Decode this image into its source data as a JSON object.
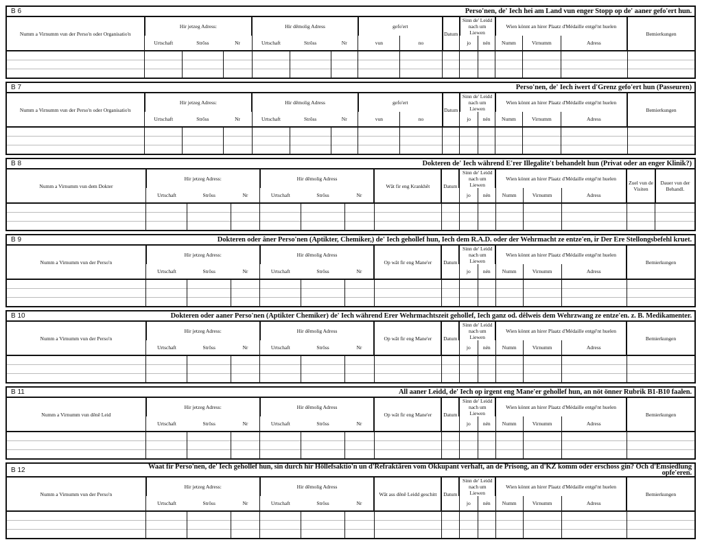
{
  "sections": [
    {
      "id": "B 6",
      "title": "Perso'nen, de' Iech hei am Land vun enger Stopp  op de' aaner gefo'ert hun.",
      "type": "route",
      "name_label": "Numm a Virnumm vun der Perso'n oder Organisatio'n",
      "extra_label": "gefo'ert",
      "extra_sub": [
        "vun",
        "no"
      ],
      "end_labels": [
        "Bemierkungen"
      ]
    },
    {
      "id": "B 7",
      "title": "Perso'nen, de' Iech iwert d'Grenz gefo'ert hun  (Passeuren)",
      "type": "route",
      "name_label": "Numm a Virnumm vun der Perso'n oder Organisatio'n",
      "extra_label": "gefo'ert",
      "extra_sub": [
        "vun",
        "no"
      ],
      "end_labels": [
        "Bemierkungen"
      ]
    },
    {
      "id": "B 8",
      "title": "Dokteren de' Iech während E'rer Illegalite't behandelt hun (Privat oder an enger Klinik?)",
      "type": "single",
      "name_label": "Numm a Virnumm vun dem Dokter",
      "extra_label": "Wât fir eng Krankhêt",
      "end_labels": [
        "Zuel vun de Visiten",
        "Dauer vun der Behandl."
      ]
    },
    {
      "id": "B 9",
      "title": "Dokteren oder âner Perso'nen (Aptikter, Chemiker,) de' Iech gehollef hun, Iech dem R.A.D. oder der Wehrmacht ze entze'en, ir Der Ere Stellongsbefehl kruet.",
      "type": "single",
      "name_label": "Numm a Virnumm vun der Perso'n",
      "extra_label": "Op wât fir eng Mane'er",
      "end_labels": [
        "Bemierkungen"
      ]
    },
    {
      "id": "B 10",
      "title": "Dokteren oder aaner Perso'nen (Aptikter Chemiker) de' Iech während Erer Wehrmachtszeit gehollef, Iech ganz od. dêlweis dem Wehrzwang ze entze'en. z. B. Medikamenter.",
      "type": "single",
      "name_label": "Numm a Virnumm vun der Perso'n",
      "extra_label": "Op wât fir eng Mane'er",
      "end_labels": [
        "Bemierkungen"
      ]
    },
    {
      "id": "B 11",
      "title": "All aaner Leidd, de' Iech op irgent eng Mane'er gehollef hun, an nöt önner Rubrik B1-B10 faalen.",
      "type": "single",
      "name_label": "Numm a Virnumm vun dênê Leid",
      "extra_label": "Op wât fir eng Mane'er",
      "end_labels": [
        "Bemierkungen"
      ]
    },
    {
      "id": "B 12",
      "title": "Waat fir Perso'nen, de' Iech gehollef hun, sin durch hir Höllefsaktio'n un d'Refraktären vom Okkupant verhaft, an de Prisong, an d'KZ komm oder  erschoss gin? Och d'Emsiedlung opfe'eren.",
      "type": "single",
      "name_label": "Numm a Virnumm vun der Perso'n",
      "extra_label": "Wât ass dênê Leidd geschitt",
      "end_labels": [
        "Bemierkungen"
      ]
    }
  ],
  "common": {
    "current_address": "Hir jetzeg Adress:",
    "former_address": "Hir dêmolig Adress",
    "address_sub": [
      "Urtschaft",
      "Strôss",
      "Nr"
    ],
    "date": "Datum",
    "alive": "Sinn de' Leidd nach um Liewen",
    "alive_sub": [
      "jo",
      "nén"
    ],
    "medal": "Wien könnt an hirer Plaatz d'Médaille entgé'nt huelen",
    "medal_sub": [
      "Numm",
      "Virnumm",
      "Adress"
    ]
  }
}
